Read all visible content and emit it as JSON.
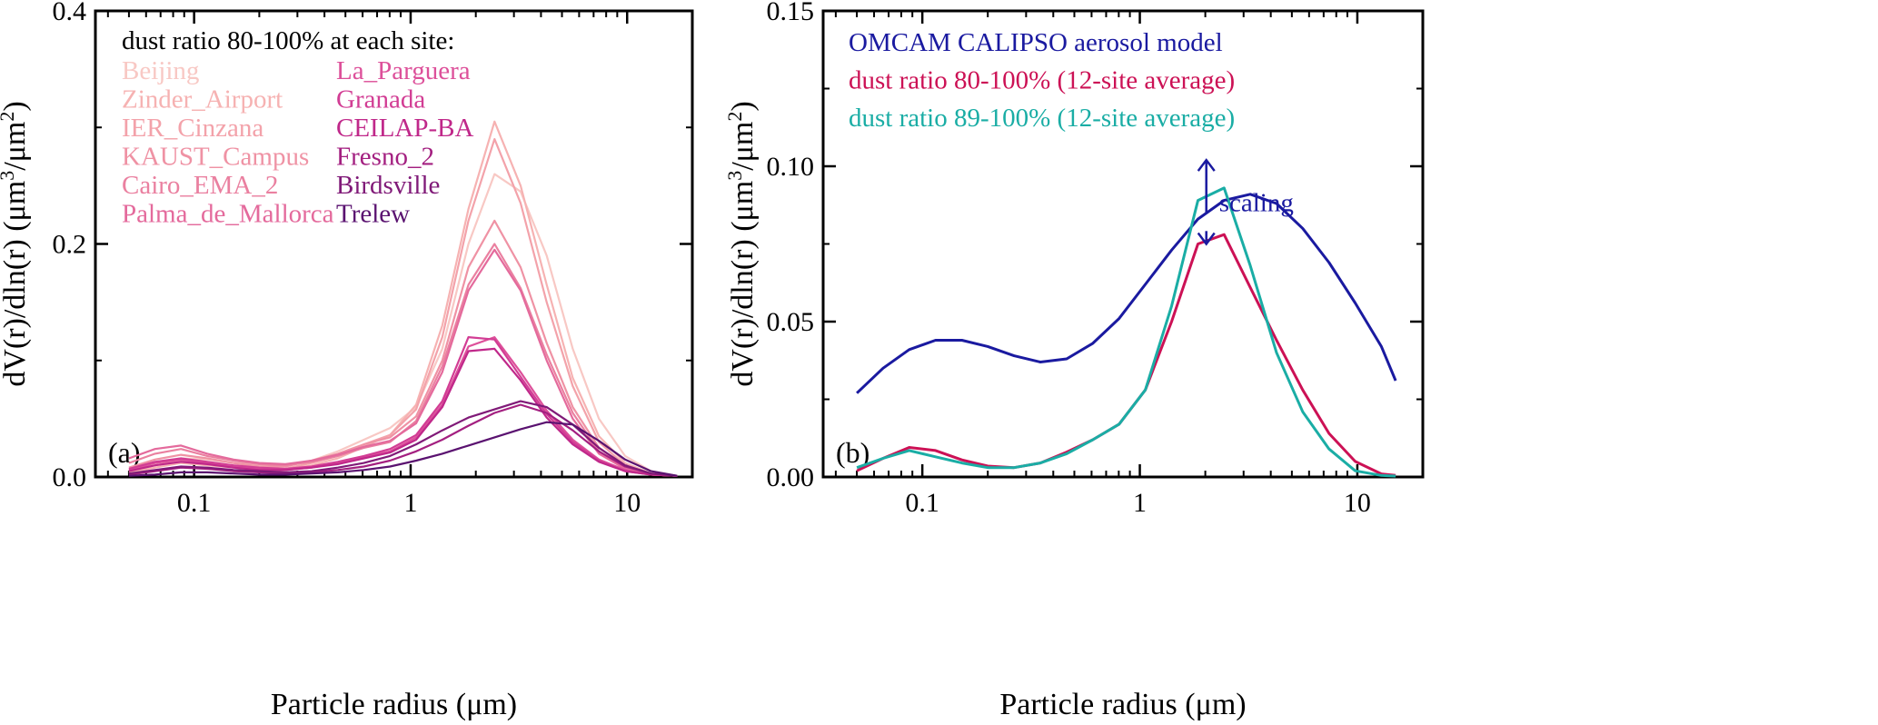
{
  "chart_data": [
    {
      "type": "line",
      "panel_label": "(a)",
      "xlabel": "Particle radius (μm)",
      "ylabel": {
        "base": "dV(r)/dln(r) (μm",
        "exp1": "3",
        "mid": "/μm",
        "exp2": "2",
        "end": ")"
      },
      "xscale": "log",
      "xlim": [
        0.035,
        20
      ],
      "ylim": [
        0,
        0.4
      ],
      "x_ticks": [
        {
          "value": 0.1,
          "label": "0.1"
        },
        {
          "value": 1,
          "label": "1"
        },
        {
          "value": 10,
          "label": "10"
        }
      ],
      "y_ticks": [
        {
          "value": 0.0,
          "label": "0.0"
        },
        {
          "value": 0.2,
          "label": "0.2"
        },
        {
          "value": 0.4,
          "label": "0.4"
        }
      ],
      "legend_title": "dust ratio 80-100% at each site:",
      "legend_position": "top-left",
      "x": [
        0.05,
        0.066,
        0.087,
        0.115,
        0.152,
        0.2,
        0.264,
        0.349,
        0.461,
        0.608,
        0.803,
        1.06,
        1.4,
        1.85,
        2.44,
        3.22,
        4.25,
        5.61,
        7.41,
        9.78,
        12.9,
        17.0
      ],
      "series": [
        {
          "name": "Beijing",
          "color": "#f8c8c4",
          "values": [
            0.006,
            0.012,
            0.016,
            0.015,
            0.012,
            0.01,
            0.01,
            0.014,
            0.022,
            0.032,
            0.042,
            0.06,
            0.11,
            0.2,
            0.26,
            0.245,
            0.19,
            0.11,
            0.05,
            0.018,
            0.005,
            0.001
          ]
        },
        {
          "name": "Zinder_Airport",
          "color": "#f6b2b2",
          "values": [
            0.004,
            0.008,
            0.012,
            0.01,
            0.008,
            0.006,
            0.006,
            0.01,
            0.016,
            0.026,
            0.036,
            0.062,
            0.13,
            0.23,
            0.305,
            0.25,
            0.165,
            0.085,
            0.035,
            0.012,
            0.003,
            0.001
          ]
        },
        {
          "name": "IER_Cinzana",
          "color": "#f3a2aa",
          "values": [
            0.005,
            0.01,
            0.014,
            0.012,
            0.009,
            0.007,
            0.007,
            0.012,
            0.018,
            0.028,
            0.036,
            0.058,
            0.12,
            0.22,
            0.29,
            0.235,
            0.15,
            0.078,
            0.03,
            0.01,
            0.003,
            0.001
          ]
        },
        {
          "name": "KAUST_Campus",
          "color": "#ef92a4",
          "values": [
            0.008,
            0.015,
            0.019,
            0.016,
            0.012,
            0.009,
            0.009,
            0.014,
            0.02,
            0.028,
            0.034,
            0.052,
            0.1,
            0.18,
            0.22,
            0.18,
            0.115,
            0.06,
            0.025,
            0.009,
            0.002,
            0.001
          ]
        },
        {
          "name": "Cairo_EMA_2",
          "color": "#ea80a0",
          "values": [
            0.012,
            0.02,
            0.024,
            0.018,
            0.014,
            0.011,
            0.01,
            0.013,
            0.018,
            0.025,
            0.03,
            0.048,
            0.095,
            0.165,
            0.2,
            0.162,
            0.105,
            0.055,
            0.022,
            0.008,
            0.002,
            0.001
          ]
        },
        {
          "name": "Palma_de_Mallorca",
          "color": "#e46a9c",
          "values": [
            0.016,
            0.024,
            0.027,
            0.02,
            0.015,
            0.012,
            0.011,
            0.014,
            0.019,
            0.026,
            0.031,
            0.046,
            0.09,
            0.16,
            0.195,
            0.16,
            0.1,
            0.05,
            0.02,
            0.007,
            0.002,
            0.001
          ]
        },
        {
          "name": "La_Parguera",
          "color": "#dd509a",
          "values": [
            0.006,
            0.012,
            0.015,
            0.012,
            0.009,
            0.007,
            0.006,
            0.008,
            0.012,
            0.017,
            0.022,
            0.034,
            0.062,
            0.112,
            0.12,
            0.09,
            0.057,
            0.032,
            0.015,
            0.006,
            0.002,
            0.001
          ]
        },
        {
          "name": "Granada",
          "color": "#d23d94",
          "values": [
            0.007,
            0.013,
            0.016,
            0.013,
            0.01,
            0.008,
            0.007,
            0.009,
            0.013,
            0.018,
            0.024,
            0.036,
            0.065,
            0.12,
            0.118,
            0.086,
            0.054,
            0.03,
            0.014,
            0.005,
            0.002,
            0.001
          ]
        },
        {
          "name": "CEILAP-BA",
          "color": "#c0288a",
          "values": [
            0.005,
            0.01,
            0.013,
            0.011,
            0.008,
            0.006,
            0.006,
            0.008,
            0.011,
            0.016,
            0.021,
            0.032,
            0.06,
            0.108,
            0.11,
            0.083,
            0.051,
            0.028,
            0.013,
            0.005,
            0.002,
            0.001
          ]
        },
        {
          "name": "Fresno_2",
          "color": "#a31f80",
          "values": [
            0.002,
            0.005,
            0.008,
            0.007,
            0.005,
            0.004,
            0.003,
            0.004,
            0.006,
            0.009,
            0.014,
            0.022,
            0.032,
            0.044,
            0.055,
            0.062,
            0.055,
            0.04,
            0.022,
            0.009,
            0.003,
            0.001
          ]
        },
        {
          "name": "Birdsville",
          "color": "#801a78",
          "values": [
            0.003,
            0.006,
            0.009,
            0.008,
            0.006,
            0.005,
            0.004,
            0.005,
            0.008,
            0.012,
            0.018,
            0.028,
            0.04,
            0.051,
            0.058,
            0.065,
            0.06,
            0.045,
            0.025,
            0.01,
            0.003,
            0.001
          ]
        },
        {
          "name": "Trelew",
          "color": "#5a1270",
          "values": [
            0.001,
            0.002,
            0.004,
            0.004,
            0.003,
            0.002,
            0.002,
            0.003,
            0.004,
            0.006,
            0.009,
            0.014,
            0.02,
            0.027,
            0.034,
            0.041,
            0.047,
            0.045,
            0.031,
            0.015,
            0.005,
            0.001
          ]
        }
      ]
    },
    {
      "type": "line",
      "panel_label": "(b)",
      "xlabel": "Particle radius (μm)",
      "ylabel": {
        "base": "dV(r)/dln(r) (μm",
        "exp1": "3",
        "mid": "/μm",
        "exp2": "2",
        "end": ")"
      },
      "xscale": "log",
      "xlim": [
        0.035,
        20
      ],
      "ylim": [
        0,
        0.15
      ],
      "x_ticks": [
        {
          "value": 0.1,
          "label": "0.1"
        },
        {
          "value": 1,
          "label": "1"
        },
        {
          "value": 10,
          "label": "10"
        }
      ],
      "y_ticks": [
        {
          "value": 0.0,
          "label": "0.00"
        },
        {
          "value": 0.05,
          "label": "0.05"
        },
        {
          "value": 0.1,
          "label": "0.10"
        },
        {
          "value": 0.15,
          "label": "0.15"
        }
      ],
      "legend_position": "top-left",
      "series": [
        {
          "name": "OMCAM CALIPSO aerosol model",
          "color": "#1a1aa0",
          "x": [
            0.05,
            0.066,
            0.087,
            0.115,
            0.152,
            0.2,
            0.264,
            0.349,
            0.461,
            0.608,
            0.803,
            1.06,
            1.4,
            1.85,
            2.44,
            3.22,
            4.25,
            5.61,
            7.41,
            9.78,
            12.9,
            15.0
          ],
          "values": [
            0.027,
            0.035,
            0.041,
            0.044,
            0.044,
            0.042,
            0.039,
            0.037,
            0.038,
            0.043,
            0.051,
            0.062,
            0.073,
            0.083,
            0.089,
            0.091,
            0.088,
            0.08,
            0.069,
            0.056,
            0.042,
            0.031
          ]
        },
        {
          "name": "dust ratio 80-100% (12-site average)",
          "color": "#cc1155",
          "x": [
            0.05,
            0.066,
            0.087,
            0.115,
            0.152,
            0.2,
            0.264,
            0.349,
            0.461,
            0.608,
            0.803,
            1.06,
            1.4,
            1.85,
            2.44,
            3.22,
            4.25,
            5.61,
            7.41,
            9.78,
            12.9,
            15.0
          ],
          "values": [
            0.002,
            0.006,
            0.0095,
            0.0085,
            0.0055,
            0.0035,
            0.003,
            0.0045,
            0.008,
            0.012,
            0.017,
            0.028,
            0.05,
            0.075,
            0.078,
            0.061,
            0.044,
            0.028,
            0.014,
            0.005,
            0.001,
            0.0005
          ]
        },
        {
          "name": "dust ratio 89-100% (12-site average)",
          "color": "#1aada5",
          "x": [
            0.05,
            0.066,
            0.087,
            0.115,
            0.152,
            0.2,
            0.264,
            0.349,
            0.461,
            0.608,
            0.803,
            1.06,
            1.4,
            1.85,
            2.44,
            3.22,
            4.25,
            5.61,
            7.41,
            9.78,
            12.9,
            15.0
          ],
          "values": [
            0.003,
            0.006,
            0.0085,
            0.0065,
            0.0045,
            0.003,
            0.003,
            0.0045,
            0.0075,
            0.012,
            0.017,
            0.028,
            0.055,
            0.089,
            0.093,
            0.068,
            0.04,
            0.021,
            0.009,
            0.002,
            0.0005,
            0.0003
          ]
        }
      ],
      "annotation": {
        "text": "scaling",
        "color": "#1a1aa0",
        "x": 3.6,
        "arrow_from": 0.085,
        "arrow_up_to": 0.102,
        "arrow_down_to": 0.075
      }
    }
  ]
}
